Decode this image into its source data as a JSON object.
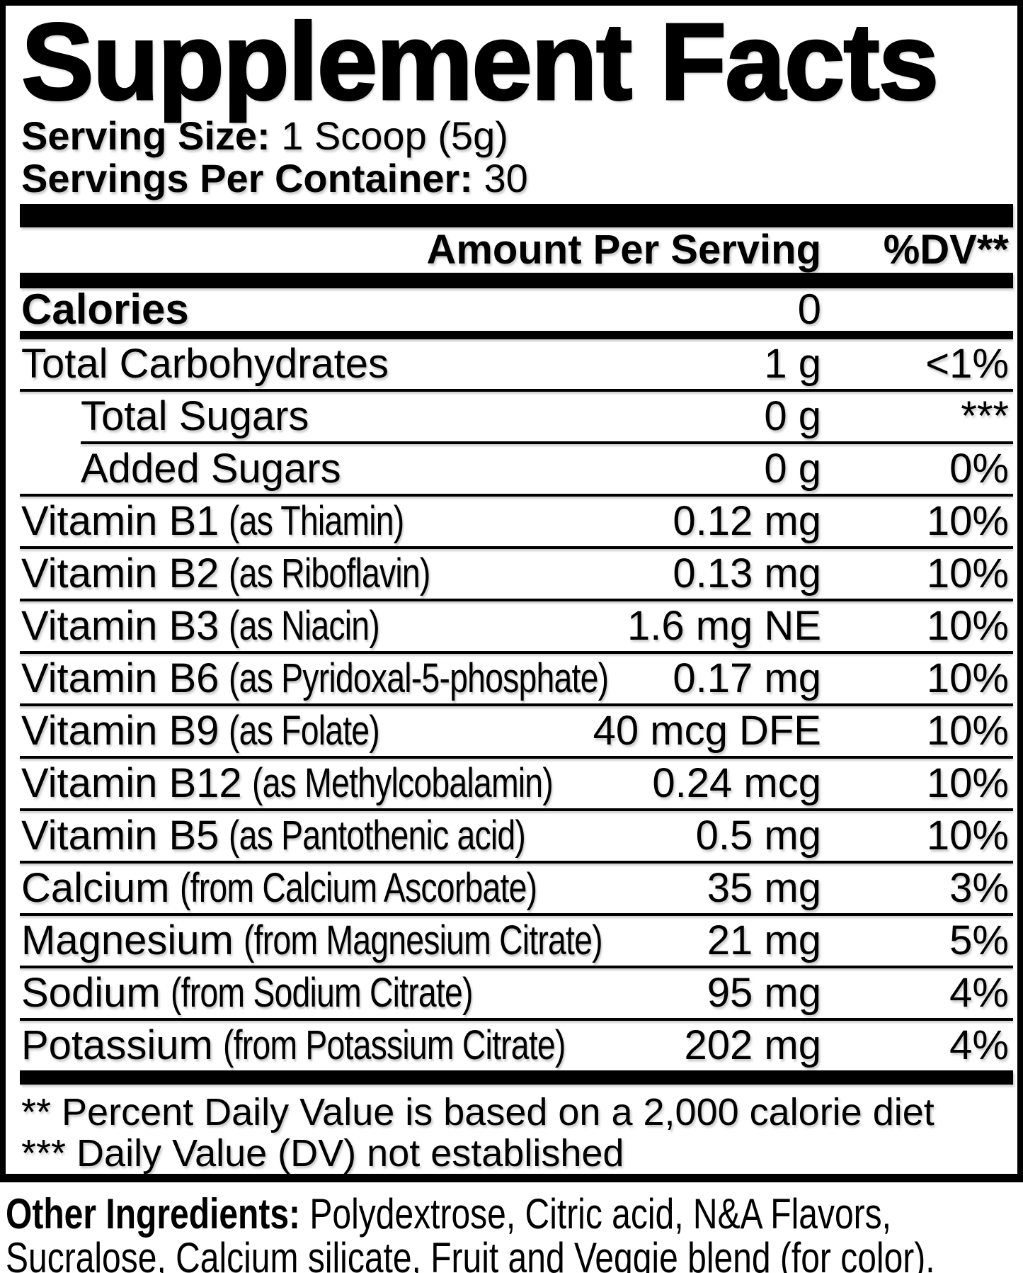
{
  "title": "Supplement Facts",
  "serving": {
    "size_label": "Serving Size:",
    "size_value": "1 Scoop (5g)",
    "per_container_label": "Servings Per Container:",
    "per_container_value": "30"
  },
  "table": {
    "header": {
      "amount": "Amount Per Serving",
      "dv": "%DV**"
    },
    "calories": {
      "name": "Calories",
      "amount": "0"
    },
    "rows": [
      {
        "name": "Total Carbohydrates",
        "detail": "",
        "amount": "1 g",
        "dv": "<1%",
        "indent": false,
        "sep": "full"
      },
      {
        "name": "Total Sugars",
        "detail": "",
        "amount": "0 g",
        "dv": "***",
        "indent": true,
        "sep": "indent"
      },
      {
        "name": "Added Sugars",
        "detail": "",
        "amount": "0 g",
        "dv": "0%",
        "indent": true,
        "sep": "full"
      },
      {
        "name": "Vitamin B1",
        "detail": "(as Thiamin)",
        "amount": "0.12 mg",
        "dv": "10%",
        "indent": false,
        "sep": "full"
      },
      {
        "name": "Vitamin B2",
        "detail": "(as Riboflavin)",
        "amount": "0.13 mg",
        "dv": "10%",
        "indent": false,
        "sep": "full"
      },
      {
        "name": "Vitamin B3",
        "detail": "(as Niacin)",
        "amount": "1.6 mg NE",
        "dv": "10%",
        "indent": false,
        "sep": "full"
      },
      {
        "name": "Vitamin B6",
        "detail": "(as Pyridoxal-5-phosphate)",
        "amount": "0.17 mg",
        "dv": "10%",
        "indent": false,
        "sep": "full"
      },
      {
        "name": "Vitamin B9",
        "detail": "(as Folate)",
        "amount": "40 mcg DFE",
        "dv": "10%",
        "indent": false,
        "sep": "full"
      },
      {
        "name": "Vitamin B12",
        "detail": "(as Methylcobalamin)",
        "amount": "0.24 mcg",
        "dv": "10%",
        "indent": false,
        "sep": "full"
      },
      {
        "name": "Vitamin B5",
        "detail": "(as Pantothenic acid)",
        "amount": "0.5 mg",
        "dv": "10%",
        "indent": false,
        "sep": "full"
      },
      {
        "name": "Calcium",
        "detail": "(from Calcium Ascorbate)",
        "amount": "35 mg",
        "dv": "3%",
        "indent": false,
        "sep": "full"
      },
      {
        "name": "Magnesium",
        "detail": "(from Magnesium Citrate)",
        "amount": "21 mg",
        "dv": "5%",
        "indent": false,
        "sep": "full"
      },
      {
        "name": "Sodium",
        "detail": "(from Sodium Citrate)",
        "amount": "95 mg",
        "dv": "4%",
        "indent": false,
        "sep": "full"
      },
      {
        "name": "Potassium",
        "detail": "(from Potassium Citrate)",
        "amount": "202 mg",
        "dv": "4%",
        "indent": false,
        "sep": "none"
      }
    ]
  },
  "footnotes": [
    "** Percent Daily Value is based on a 2,000 calorie diet",
    "*** Daily Value (DV) not established"
  ],
  "other_ingredients": {
    "label": "Other Ingredients:",
    "text": " Polydextrose, Citric acid, N&A Flavors, Sucralose, Calcium silicate, Fruit and Veggie blend (for color)."
  },
  "colors": {
    "ink": "#000000",
    "background": "#ffffff"
  }
}
